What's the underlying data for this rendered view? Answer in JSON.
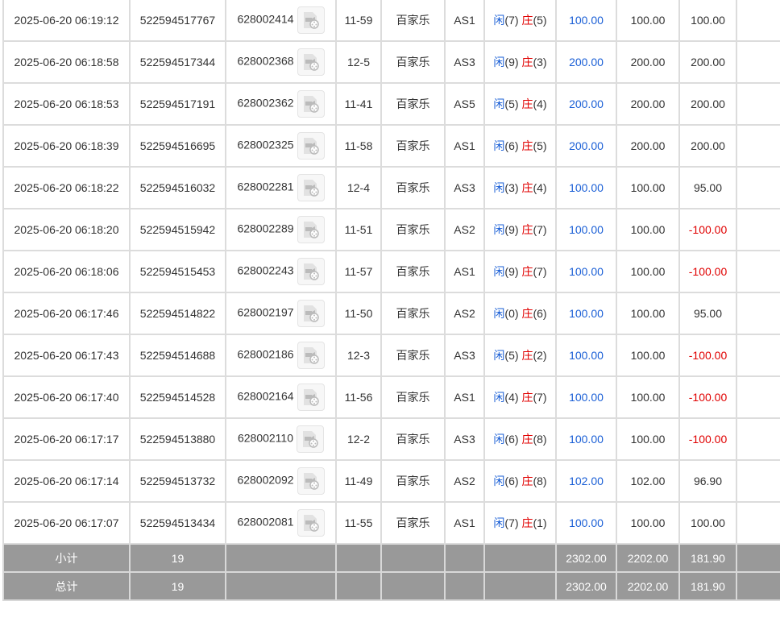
{
  "rows": [
    {
      "time": "2025-06-20 06:19:12",
      "bet_id": "522594517767",
      "round": "628002414",
      "shoe": "11-59",
      "game": "百家乐",
      "table": "AS1",
      "player": "(7)",
      "banker": "(5)",
      "bet": "100.00",
      "valid": "100.00",
      "win": "100.00"
    },
    {
      "time": "2025-06-20 06:18:58",
      "bet_id": "522594517344",
      "round": "628002368",
      "shoe": "12-5",
      "game": "百家乐",
      "table": "AS3",
      "player": "(9)",
      "banker": "(3)",
      "bet": "200.00",
      "valid": "200.00",
      "win": "200.00"
    },
    {
      "time": "2025-06-20 06:18:53",
      "bet_id": "522594517191",
      "round": "628002362",
      "shoe": "11-41",
      "game": "百家乐",
      "table": "AS5",
      "player": "(5)",
      "banker": "(4)",
      "bet": "200.00",
      "valid": "200.00",
      "win": "200.00"
    },
    {
      "time": "2025-06-20 06:18:39",
      "bet_id": "522594516695",
      "round": "628002325",
      "shoe": "11-58",
      "game": "百家乐",
      "table": "AS1",
      "player": "(6)",
      "banker": "(5)",
      "bet": "200.00",
      "valid": "200.00",
      "win": "200.00"
    },
    {
      "time": "2025-06-20 06:18:22",
      "bet_id": "522594516032",
      "round": "628002281",
      "shoe": "12-4",
      "game": "百家乐",
      "table": "AS3",
      "player": "(3)",
      "banker": "(4)",
      "bet": "100.00",
      "valid": "100.00",
      "win": "95.00"
    },
    {
      "time": "2025-06-20 06:18:20",
      "bet_id": "522594515942",
      "round": "628002289",
      "shoe": "11-51",
      "game": "百家乐",
      "table": "AS2",
      "player": "(9)",
      "banker": "(7)",
      "bet": "100.00",
      "valid": "100.00",
      "win": "-100.00"
    },
    {
      "time": "2025-06-20 06:18:06",
      "bet_id": "522594515453",
      "round": "628002243",
      "shoe": "11-57",
      "game": "百家乐",
      "table": "AS1",
      "player": "(9)",
      "banker": "(7)",
      "bet": "100.00",
      "valid": "100.00",
      "win": "-100.00"
    },
    {
      "time": "2025-06-20 06:17:46",
      "bet_id": "522594514822",
      "round": "628002197",
      "shoe": "11-50",
      "game": "百家乐",
      "table": "AS2",
      "player": "(0)",
      "banker": "(6)",
      "bet": "100.00",
      "valid": "100.00",
      "win": "95.00"
    },
    {
      "time": "2025-06-20 06:17:43",
      "bet_id": "522594514688",
      "round": "628002186",
      "shoe": "12-3",
      "game": "百家乐",
      "table": "AS3",
      "player": "(5)",
      "banker": "(2)",
      "bet": "100.00",
      "valid": "100.00",
      "win": "-100.00"
    },
    {
      "time": "2025-06-20 06:17:40",
      "bet_id": "522594514528",
      "round": "628002164",
      "shoe": "11-56",
      "game": "百家乐",
      "table": "AS1",
      "player": "(4)",
      "banker": "(7)",
      "bet": "100.00",
      "valid": "100.00",
      "win": "-100.00"
    },
    {
      "time": "2025-06-20 06:17:17",
      "bet_id": "522594513880",
      "round": "628002110",
      "shoe": "12-2",
      "game": "百家乐",
      "table": "AS3",
      "player": "(6)",
      "banker": "(8)",
      "bet": "100.00",
      "valid": "100.00",
      "win": "-100.00"
    },
    {
      "time": "2025-06-20 06:17:14",
      "bet_id": "522594513732",
      "round": "628002092",
      "shoe": "11-49",
      "game": "百家乐",
      "table": "AS2",
      "player": "(6)",
      "banker": "(8)",
      "bet": "102.00",
      "valid": "102.00",
      "win": "96.90"
    },
    {
      "time": "2025-06-20 06:17:07",
      "bet_id": "522594513434",
      "round": "628002081",
      "shoe": "11-55",
      "game": "百家乐",
      "table": "AS1",
      "player": "(7)",
      "banker": "(1)",
      "bet": "100.00",
      "valid": "100.00",
      "win": "100.00"
    }
  ],
  "labels": {
    "player": "闲",
    "banker": "庄"
  },
  "subtotal": {
    "label": "小计",
    "count": "19",
    "bet": "2302.00",
    "valid": "2202.00",
    "win": "181.90"
  },
  "total": {
    "label": "总计",
    "count": "19",
    "bet": "2302.00",
    "valid": "2202.00",
    "win": "181.90"
  },
  "colors": {
    "player": "#1a5fd6",
    "banker": "#e00000",
    "negative": "#e00000",
    "summary_bg": "#999999"
  },
  "icon": "video-replay-icon"
}
